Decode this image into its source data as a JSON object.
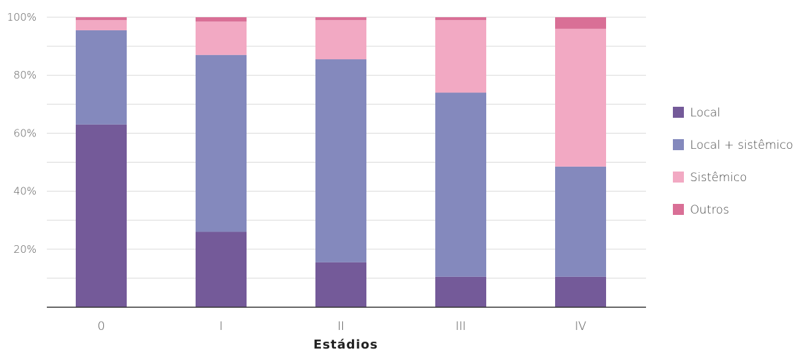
{
  "chart_data": {
    "type": "bar",
    "stacked": true,
    "categories": [
      "0",
      "I",
      "II",
      "III",
      "IV"
    ],
    "xlabel": "Estádios",
    "ylabel": "",
    "ylim": [
      0,
      100
    ],
    "yticks": [
      "20%",
      "40%",
      "60%",
      "80%",
      "100%"
    ],
    "ytick_values": [
      20,
      40,
      60,
      80,
      100
    ],
    "grid": true,
    "legend_position": "right",
    "series": [
      {
        "name": "Local",
        "color": "#745a99",
        "values": [
          63,
          26,
          15.5,
          10.5,
          10.5
        ]
      },
      {
        "name": "Local + sistêmico",
        "color": "#8489bd",
        "values": [
          32.5,
          61,
          70,
          63.5,
          38
        ]
      },
      {
        "name": "Sistêmico",
        "color": "#f2a9c3",
        "values": [
          3.5,
          11.5,
          13.5,
          25,
          47.5
        ]
      },
      {
        "name": "Outros",
        "color": "#d96f96",
        "values": [
          1,
          1.5,
          1,
          1,
          4
        ]
      }
    ]
  }
}
